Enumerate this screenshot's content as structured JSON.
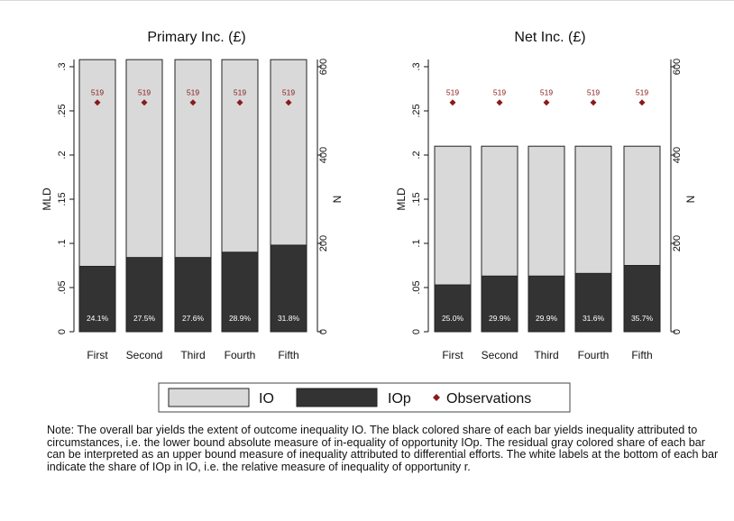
{
  "chart_data": [
    {
      "type": "bar",
      "title": "Primary Inc. (£)",
      "ylabel": "MLD",
      "y2label": "N",
      "categories": [
        "First",
        "Second",
        "Third",
        "Fourth",
        "Fifth"
      ],
      "ylim": [
        0,
        0.3
      ],
      "yticks": [
        "0",
        ".05",
        ".1",
        ".15",
        ".2",
        ".25",
        ".3"
      ],
      "y2lim": [
        0,
        600
      ],
      "y2ticks": [
        "0",
        "200",
        "400",
        "600"
      ],
      "series": [
        {
          "name": "IO",
          "values": [
            0.308,
            0.308,
            0.308,
            0.308,
            0.308
          ]
        },
        {
          "name": "IOp",
          "values": [
            0.074,
            0.084,
            0.084,
            0.09,
            0.098
          ]
        },
        {
          "name": "Observations",
          "axis": "right",
          "values": [
            519,
            519,
            519,
            519,
            519
          ]
        }
      ],
      "bar_labels": [
        "24.1%",
        "27.5%",
        "27.6%",
        "28.9%",
        "31.8%"
      ],
      "obs_labels": [
        "519",
        "519",
        "519",
        "519",
        "519"
      ]
    },
    {
      "type": "bar",
      "title": "Net Inc. (£)",
      "ylabel": "MLD",
      "y2label": "N",
      "categories": [
        "First",
        "Second",
        "Third",
        "Fourth",
        "Fifth"
      ],
      "ylim": [
        0,
        0.3
      ],
      "yticks": [
        "0",
        ".05",
        ".1",
        ".15",
        ".2",
        ".25",
        ".3"
      ],
      "y2lim": [
        0,
        600
      ],
      "y2ticks": [
        "0",
        "200",
        "400",
        "600"
      ],
      "series": [
        {
          "name": "IO",
          "values": [
            0.21,
            0.21,
            0.21,
            0.21,
            0.21
          ]
        },
        {
          "name": "IOp",
          "values": [
            0.053,
            0.063,
            0.063,
            0.066,
            0.075
          ]
        },
        {
          "name": "Observations",
          "axis": "right",
          "values": [
            519,
            519,
            519,
            519,
            519
          ]
        }
      ],
      "bar_labels": [
        "25.0%",
        "29.9%",
        "29.9%",
        "31.6%",
        "35.7%"
      ],
      "obs_labels": [
        "519",
        "519",
        "519",
        "519",
        "519"
      ]
    }
  ],
  "legend": {
    "placement": "bottom",
    "items": [
      {
        "label": "IO",
        "color": "#d9d9d9",
        "marker": "box"
      },
      {
        "label": "IOp",
        "color": "#333333",
        "marker": "box"
      },
      {
        "label": "Observations",
        "color": "#8b1a1a",
        "marker": "diamond"
      }
    ]
  },
  "colors": {
    "io_fill": "#d9d9d9",
    "iop_fill": "#333333",
    "bar_outline": "#222222",
    "observation": "#8b1a1a",
    "bar_label": "#ffffff"
  },
  "note": "Note: The overall bar yields the extent of outcome inequality IO. The black colored share of each bar yields inequality attributed to circumstances, i.e. the lower bound absolute measure of in-equality of opportunity IOp. The residual gray colored share of each bar can be interpreted as an upper bound measure of inequality attributed to differential efforts. The white labels at the bottom of each bar indicate the share of IOp in IO, i.e. the relative measure of inequality of opportunity r."
}
